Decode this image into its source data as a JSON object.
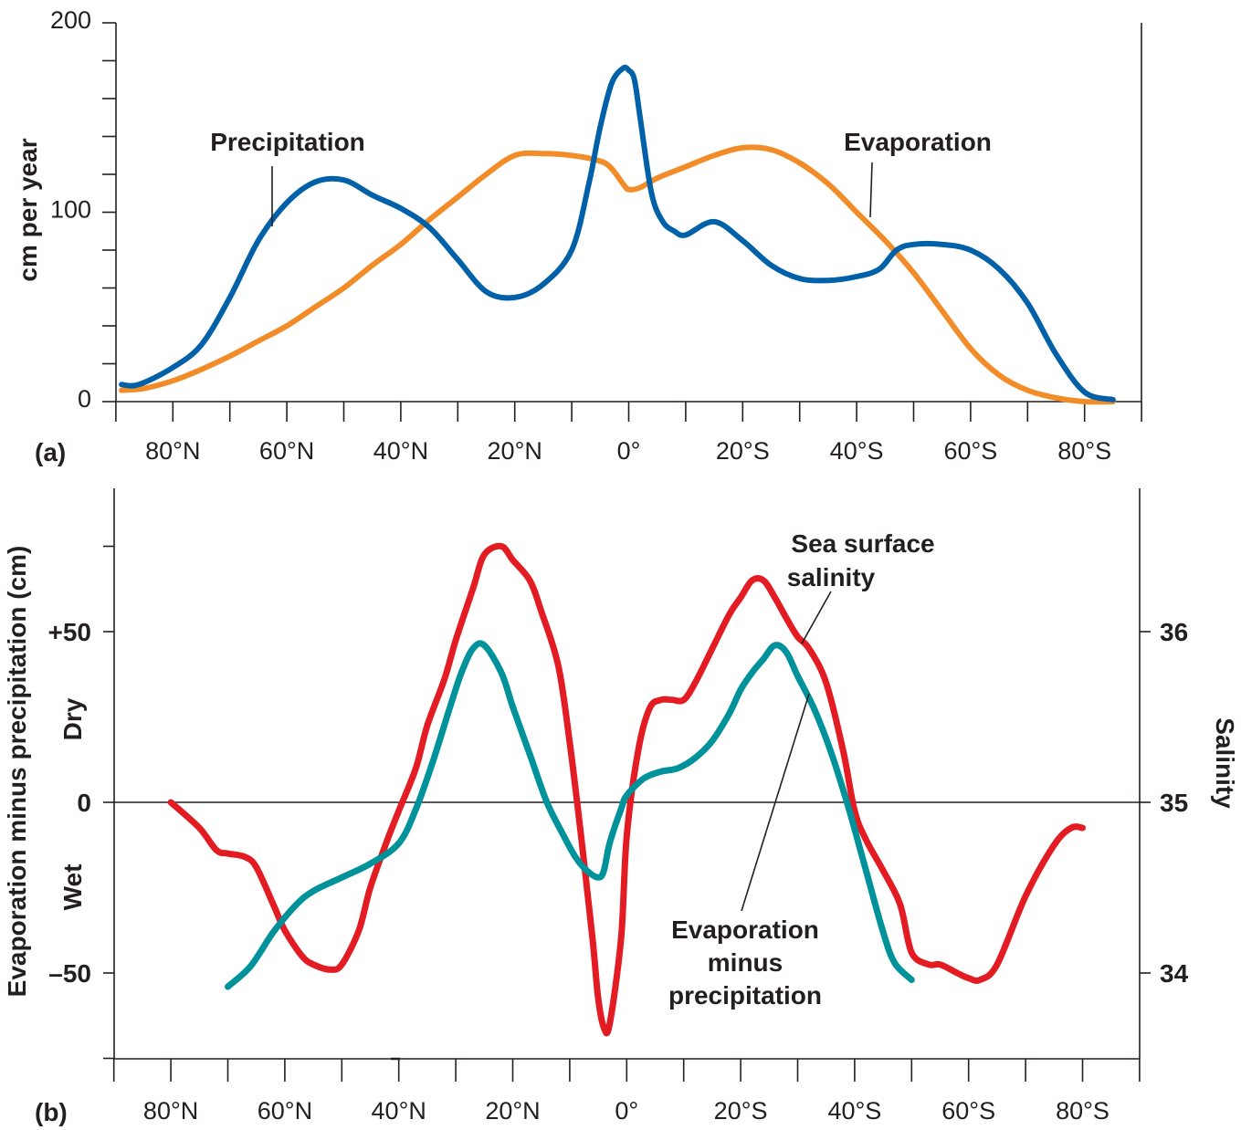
{
  "colors": {
    "precipitation": "#0061a8",
    "evaporation": "#f28c28",
    "salinity": "#e31b23",
    "e_minus_p": "#00929a",
    "ink": "#231f20"
  },
  "chart_data": [
    {
      "type": "line",
      "panel_label": "(a)",
      "xlabel": "",
      "ylabel": "cm per year",
      "x_ticks": [
        "80°N",
        "60°N",
        "40°N",
        "20°N",
        "0°",
        "20°S",
        "40°S",
        "60°S",
        "80°S"
      ],
      "x_tick_values": [
        80,
        60,
        40,
        20,
        0,
        -20,
        -40,
        -60,
        -80
      ],
      "xlim": [
        90,
        -90
      ],
      "ylim": [
        0,
        200
      ],
      "y_tick_labels": [
        "0",
        "100",
        "200"
      ],
      "y_tick_label_values": [
        0,
        100,
        200
      ],
      "y_minor_ticks": [
        0,
        20,
        40,
        60,
        80,
        100,
        120,
        140,
        160,
        180,
        200
      ],
      "grid": false,
      "series": [
        {
          "name": "Precipitation",
          "color_key": "precipitation",
          "x": [
            89,
            86,
            80,
            75,
            70,
            65,
            60,
            55,
            50,
            45,
            40,
            35,
            30,
            25,
            20,
            15,
            10,
            7,
            5,
            3,
            1,
            0,
            -1,
            -2,
            -4,
            -6,
            -8,
            -10,
            -15,
            -20,
            -25,
            -30,
            -35,
            -40,
            -44,
            -47,
            -50,
            -55,
            -60,
            -65,
            -70,
            -75,
            -80,
            -85
          ],
          "y": [
            9,
            9,
            18,
            30,
            55,
            85,
            105,
            116,
            117,
            109,
            102,
            92,
            75,
            58,
            55,
            62,
            80,
            115,
            145,
            168,
            176,
            175,
            170,
            150,
            110,
            95,
            90,
            88,
            95,
            85,
            72,
            65,
            64,
            66,
            70,
            80,
            83,
            83,
            80,
            70,
            52,
            25,
            5,
            1
          ]
        },
        {
          "name": "Evaporation",
          "color_key": "evaporation",
          "x": [
            89,
            85,
            80,
            75,
            70,
            65,
            60,
            55,
            50,
            45,
            40,
            35,
            30,
            25,
            20,
            15,
            10,
            5,
            3,
            1,
            0,
            -2,
            -5,
            -10,
            -15,
            -20,
            -25,
            -30,
            -35,
            -40,
            -45,
            -50,
            -55,
            -60,
            -65,
            -70,
            -75,
            -80,
            -85
          ],
          "y": [
            6,
            7,
            11,
            17,
            24,
            32,
            40,
            50,
            60,
            72,
            83,
            96,
            108,
            120,
            130,
            131,
            130,
            127,
            123,
            115,
            112,
            113,
            118,
            124,
            130,
            134,
            133,
            126,
            115,
            100,
            85,
            68,
            48,
            28,
            14,
            6,
            2,
            0,
            0
          ]
        }
      ],
      "annotations": [
        "Precipitation",
        "Evaporation"
      ]
    },
    {
      "type": "line",
      "panel_label": "(b)",
      "xlabel": "",
      "ylabel": "Evaporation minus precipitation (cm)",
      "y2label": "Salinity",
      "x_ticks": [
        "80°N",
        "60°N",
        "40°N",
        "20°N",
        "0°",
        "20°S",
        "40°S",
        "60°S",
        "80°S"
      ],
      "x_tick_values": [
        80,
        60,
        40,
        20,
        0,
        -20,
        -40,
        -60,
        -80
      ],
      "xlim": [
        90,
        -90
      ],
      "ylim": [
        -75,
        75
      ],
      "y_tick_labels": [
        "+50",
        "0",
        "–50"
      ],
      "y_tick_label_values": [
        50,
        0,
        -50
      ],
      "y_zone_labels": [
        "Dry",
        "Wet"
      ],
      "y2lim": [
        33.5,
        36.5
      ],
      "y2_tick_labels": [
        "36",
        "35",
        "34"
      ],
      "y2_tick_label_values": [
        36,
        35,
        34
      ],
      "zero_line": true,
      "grid": false,
      "series": [
        {
          "name": "Sea surface salinity",
          "axis": "right",
          "color_key": "salinity",
          "x": [
            80,
            75,
            72,
            70,
            67,
            65,
            62,
            60,
            57,
            55,
            52,
            50,
            47,
            45,
            42,
            40,
            37,
            35,
            32,
            30,
            27,
            25,
            22,
            20,
            17,
            15,
            12,
            10,
            8,
            6,
            5,
            4,
            3,
            1,
            0,
            -2,
            -4,
            -6,
            -8,
            -10,
            -12,
            -15,
            -18,
            -20,
            -22,
            -24,
            -26,
            -28,
            -30,
            -32,
            -35,
            -38,
            -40,
            -42,
            -45,
            -48,
            -50,
            -53,
            -55,
            -58,
            -60,
            -62,
            -65,
            -70,
            -75,
            -78,
            -80
          ],
          "y": [
            35.0,
            34.85,
            34.72,
            34.7,
            34.68,
            34.62,
            34.4,
            34.25,
            34.1,
            34.05,
            34.02,
            34.05,
            34.25,
            34.5,
            34.78,
            34.95,
            35.2,
            35.45,
            35.72,
            35.95,
            36.25,
            36.45,
            36.5,
            36.42,
            36.3,
            36.12,
            35.8,
            35.35,
            34.8,
            34.2,
            33.85,
            33.68,
            33.7,
            34.2,
            34.8,
            35.3,
            35.55,
            35.6,
            35.6,
            35.6,
            35.7,
            35.9,
            36.1,
            36.2,
            36.3,
            36.3,
            36.2,
            36.08,
            35.97,
            35.9,
            35.7,
            35.3,
            34.95,
            34.78,
            34.6,
            34.4,
            34.12,
            34.05,
            34.05,
            34.0,
            33.97,
            33.96,
            34.05,
            34.45,
            34.75,
            34.85,
            34.85
          ]
        },
        {
          "name": "Evaporation minus precipitation",
          "axis": "left",
          "color_key": "e_minus_p",
          "x": [
            70,
            66,
            62,
            58,
            55,
            50,
            45,
            40,
            37,
            34,
            31,
            29,
            27,
            25,
            22,
            20,
            17,
            14,
            11,
            9,
            7,
            5,
            4,
            3,
            1,
            0,
            -3,
            -6,
            -9,
            -12,
            -15,
            -18,
            -20,
            -22,
            -24,
            -26,
            -28,
            -30,
            -33,
            -36,
            -39,
            -42,
            -45,
            -47,
            -50
          ],
          "y": [
            -54,
            -48,
            -38,
            -30,
            -26,
            -22,
            -18,
            -12,
            -2,
            12,
            28,
            38,
            45,
            46,
            38,
            28,
            14,
            0,
            -10,
            -16,
            -20,
            -22,
            -20,
            -12,
            -2,
            2,
            7,
            9,
            10,
            13,
            18,
            26,
            33,
            38,
            42,
            46,
            44,
            37,
            27,
            14,
            -2,
            -20,
            -38,
            -47,
            -52
          ]
        }
      ],
      "annotations": [
        "Sea surface salinity",
        "Evaporation minus precipitation"
      ]
    }
  ],
  "labels": {
    "precipitation": "Precipitation",
    "evaporation": "Evaporation",
    "salinity": [
      "Sea surface",
      "salinity"
    ],
    "e_minus_p": [
      "Evaporation",
      "minus",
      "precipitation"
    ]
  }
}
